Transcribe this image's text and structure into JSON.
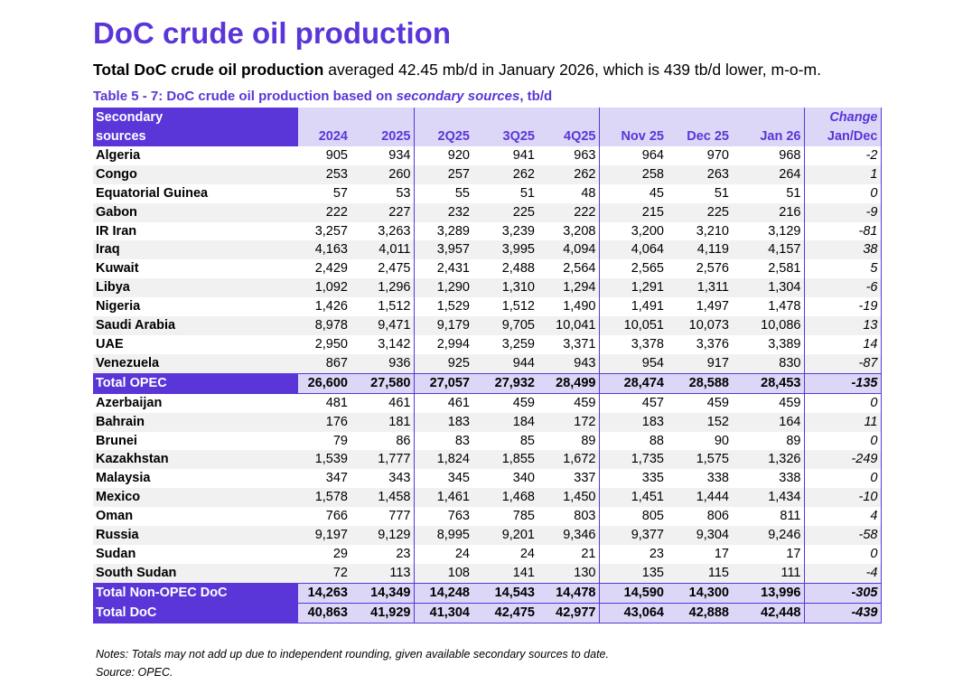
{
  "title": "DoC crude oil production",
  "subtitle": {
    "bold": "Total DoC crude oil production",
    "rest": " averaged 42.45 mb/d in January 2026, which is 439 tb/d lower, m-o-m."
  },
  "caption": {
    "pre": "Table 5 - 7: DoC crude oil production based on ",
    "italic": "secondary sources",
    "post": ", tb/d"
  },
  "header": {
    "name_line1": "Secondary",
    "name_line2": "sources",
    "change_line1": "Change",
    "columns": [
      "2024",
      "2025",
      "2Q25",
      "3Q25",
      "4Q25",
      "Nov 25",
      "Dec 25",
      "Jan 26",
      "Jan/Dec"
    ]
  },
  "rows": [
    {
      "name": "Algeria",
      "v": [
        "905",
        "934",
        "920",
        "941",
        "963",
        "964",
        "970",
        "968",
        "-2"
      ]
    },
    {
      "name": "Congo",
      "v": [
        "253",
        "260",
        "257",
        "262",
        "262",
        "258",
        "263",
        "264",
        "1"
      ]
    },
    {
      "name": "Equatorial Guinea",
      "v": [
        "57",
        "53",
        "55",
        "51",
        "48",
        "45",
        "51",
        "51",
        "0"
      ]
    },
    {
      "name": "Gabon",
      "v": [
        "222",
        "227",
        "232",
        "225",
        "222",
        "215",
        "225",
        "216",
        "-9"
      ]
    },
    {
      "name": "IR Iran",
      "v": [
        "3,257",
        "3,263",
        "3,289",
        "3,239",
        "3,208",
        "3,200",
        "3,210",
        "3,129",
        "-81"
      ]
    },
    {
      "name": "Iraq",
      "v": [
        "4,163",
        "4,011",
        "3,957",
        "3,995",
        "4,094",
        "4,064",
        "4,119",
        "4,157",
        "38"
      ]
    },
    {
      "name": "Kuwait",
      "v": [
        "2,429",
        "2,475",
        "2,431",
        "2,488",
        "2,564",
        "2,565",
        "2,576",
        "2,581",
        "5"
      ]
    },
    {
      "name": "Libya",
      "v": [
        "1,092",
        "1,296",
        "1,290",
        "1,310",
        "1,294",
        "1,291",
        "1,311",
        "1,304",
        "-6"
      ]
    },
    {
      "name": "Nigeria",
      "v": [
        "1,426",
        "1,512",
        "1,529",
        "1,512",
        "1,490",
        "1,491",
        "1,497",
        "1,478",
        "-19"
      ]
    },
    {
      "name": "Saudi Arabia",
      "v": [
        "8,978",
        "9,471",
        "9,179",
        "9,705",
        "10,041",
        "10,051",
        "10,073",
        "10,086",
        "13"
      ]
    },
    {
      "name": "UAE",
      "v": [
        "2,950",
        "3,142",
        "2,994",
        "3,259",
        "3,371",
        "3,378",
        "3,376",
        "3,389",
        "14"
      ]
    },
    {
      "name": "Venezuela",
      "v": [
        "867",
        "936",
        "925",
        "944",
        "943",
        "954",
        "917",
        "830",
        "-87"
      ]
    },
    {
      "name": "Total  OPEC",
      "total": true,
      "v": [
        "26,600",
        "27,580",
        "27,057",
        "27,932",
        "28,499",
        "28,474",
        "28,588",
        "28,453",
        "-135"
      ]
    },
    {
      "name": "Azerbaijan",
      "v": [
        "481",
        "461",
        "461",
        "459",
        "459",
        "457",
        "459",
        "459",
        "0"
      ]
    },
    {
      "name": "Bahrain",
      "v": [
        "176",
        "181",
        "183",
        "184",
        "172",
        "183",
        "152",
        "164",
        "11"
      ]
    },
    {
      "name": "Brunei",
      "v": [
        "79",
        "86",
        "83",
        "85",
        "89",
        "88",
        "90",
        "89",
        "0"
      ]
    },
    {
      "name": "Kazakhstan",
      "v": [
        "1,539",
        "1,777",
        "1,824",
        "1,855",
        "1,672",
        "1,735",
        "1,575",
        "1,326",
        "-249"
      ]
    },
    {
      "name": "Malaysia",
      "v": [
        "347",
        "343",
        "345",
        "340",
        "337",
        "335",
        "338",
        "338",
        "0"
      ]
    },
    {
      "name": "Mexico",
      "v": [
        "1,578",
        "1,458",
        "1,461",
        "1,468",
        "1,450",
        "1,451",
        "1,444",
        "1,434",
        "-10"
      ]
    },
    {
      "name": "Oman",
      "v": [
        "766",
        "777",
        "763",
        "785",
        "803",
        "805",
        "806",
        "811",
        "4"
      ]
    },
    {
      "name": "Russia",
      "v": [
        "9,197",
        "9,129",
        "8,995",
        "9,201",
        "9,346",
        "9,377",
        "9,304",
        "9,246",
        "-58"
      ]
    },
    {
      "name": "Sudan",
      "v": [
        "29",
        "23",
        "24",
        "24",
        "21",
        "23",
        "17",
        "17",
        "0"
      ]
    },
    {
      "name": "South Sudan",
      "v": [
        "72",
        "113",
        "108",
        "141",
        "130",
        "135",
        "115",
        "111",
        "-4"
      ]
    },
    {
      "name": "Total Non-OPEC DoC",
      "total": true,
      "v": [
        "14,263",
        "14,349",
        "14,248",
        "14,543",
        "14,478",
        "14,590",
        "14,300",
        "13,996",
        "-305"
      ]
    },
    {
      "name": "Total DoC",
      "total": true,
      "v": [
        "40,863",
        "41,929",
        "41,304",
        "42,475",
        "42,977",
        "43,064",
        "42,888",
        "42,448",
        "-439"
      ]
    }
  ],
  "notes": "Notes: Totals may not add up due to independent rounding, given available secondary sources to date.",
  "source": "Source: OPEC.",
  "colors": {
    "accent": "#5a36d8",
    "header_light": "#dcd6f7",
    "row_alt": "#f1f1f1"
  }
}
